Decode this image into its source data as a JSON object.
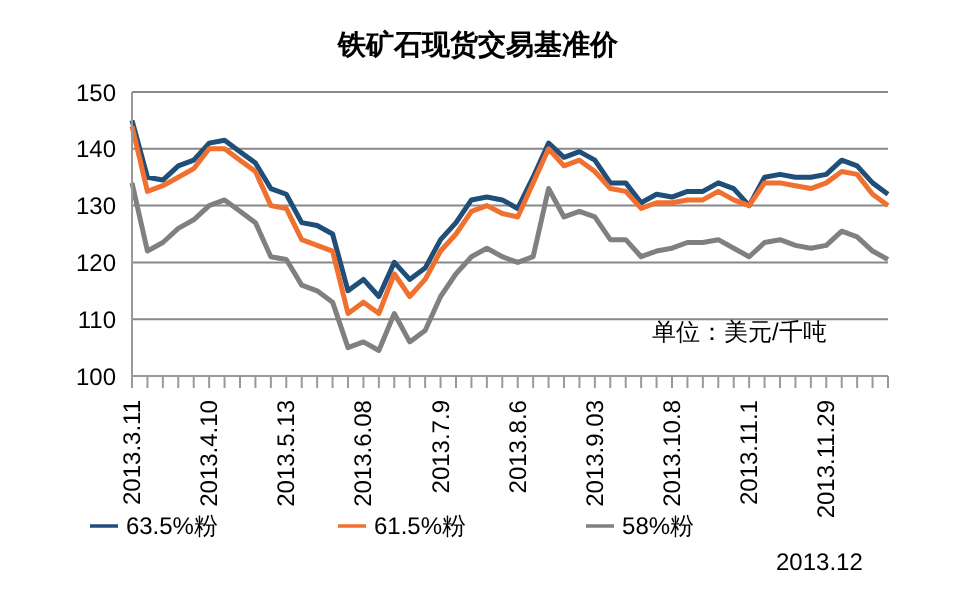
{
  "chart_data": {
    "type": "line",
    "title": "铁矿石现货交易基准价",
    "categories": [
      "2013.3.11",
      null,
      null,
      null,
      null,
      "2013.4.10",
      null,
      null,
      null,
      null,
      "2013.5.13",
      null,
      null,
      null,
      null,
      "2013.6.08",
      null,
      null,
      null,
      null,
      "2013.7.9",
      null,
      null,
      null,
      null,
      "2013.8.6",
      null,
      null,
      null,
      null,
      "2013.9.03",
      null,
      null,
      null,
      null,
      "2013.10.8",
      null,
      null,
      null,
      null,
      "2013.11.1",
      null,
      null,
      null,
      null,
      "2013.11.29",
      null,
      null,
      null,
      null
    ],
    "series": [
      {
        "name": "63.5%粉",
        "color": "#1f4e79",
        "values": [
          145,
          135,
          134.5,
          137,
          138,
          141,
          141.5,
          139.5,
          137.5,
          133,
          132,
          127,
          126.5,
          125,
          115,
          117,
          114,
          120,
          117,
          119,
          124,
          127,
          131,
          131.5,
          131,
          129.5,
          135,
          141,
          138.5,
          139.5,
          138,
          134,
          134,
          130.5,
          132,
          131.5,
          132.5,
          132.5,
          134,
          133,
          130,
          135,
          135.5,
          135,
          135,
          135.5,
          138,
          137,
          134,
          132
        ]
      },
      {
        "name": "61.5%粉",
        "color": "#f07030",
        "values": [
          144,
          132.5,
          133.5,
          135,
          136.5,
          140,
          140,
          138,
          136,
          130,
          129.5,
          124,
          123,
          122,
          111,
          113,
          111,
          118,
          114,
          117,
          122,
          125,
          129,
          130,
          128.6,
          128,
          134,
          140,
          137,
          138,
          136,
          133,
          132.5,
          129.5,
          130.5,
          130.5,
          131,
          131,
          132.5,
          131,
          130,
          134,
          134,
          133.5,
          133,
          134,
          136,
          135.5,
          132,
          130
        ]
      },
      {
        "name": "58%粉",
        "color": "#808080",
        "values": [
          134,
          122,
          123.5,
          126,
          127.5,
          130,
          131,
          129,
          127,
          121,
          120.5,
          116,
          115,
          113,
          105,
          106,
          104.5,
          111,
          106,
          108,
          114,
          118,
          121,
          122.5,
          121,
          120,
          121,
          133,
          128,
          129,
          128,
          124,
          124,
          121,
          122,
          122.5,
          123.5,
          123.5,
          124,
          122.5,
          121,
          123.5,
          124,
          123,
          122.5,
          123,
          125.5,
          124.5,
          122,
          120.5
        ]
      }
    ],
    "ylim": [
      100,
      150
    ],
    "yticks": [
      100,
      110,
      120,
      130,
      140,
      150
    ],
    "grid": "y",
    "legend": "bottom",
    "marker": "none",
    "line_style": "solid",
    "annotations": [
      "单位：美元/千吨",
      "2013.12"
    ]
  }
}
